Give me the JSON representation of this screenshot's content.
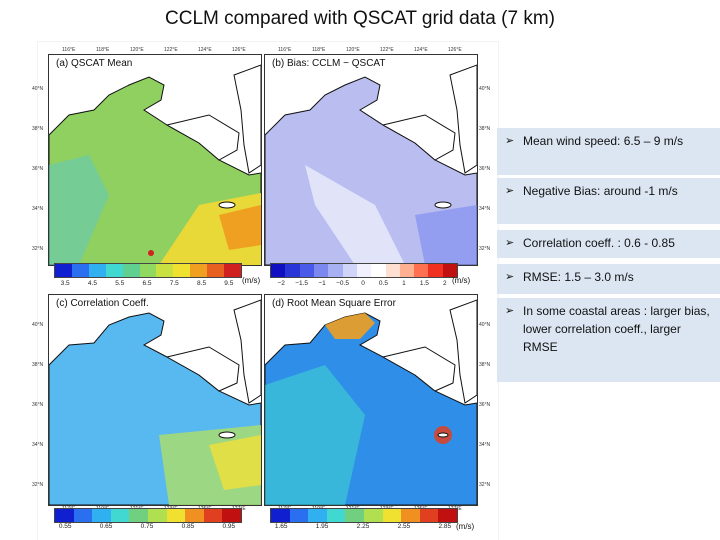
{
  "title": "CCLM compared with QSCAT grid data (7 km)",
  "colors": {
    "land": "#ffffff",
    "coast": "#111111",
    "mean_sea": "#8fd060",
    "bias_sea": "#b9bdf0",
    "corr_sea": "#58b8f0",
    "rmse_sea": "#2f8fe8",
    "box_bg": "#dce6f2"
  },
  "panels": [
    {
      "label": "(a) QSCAT Mean",
      "lon_ticks": [
        "116°E",
        "118°E",
        "120°E",
        "122°E",
        "124°E",
        "126°E"
      ],
      "lat_ticks": [
        "40°N",
        "38°N",
        "36°N",
        "34°N",
        "32°N"
      ]
    },
    {
      "label": "(b) Bias: CCLM − QSCAT",
      "lon_ticks": [
        "116°E",
        "118°E",
        "120°E",
        "122°E",
        "124°E",
        "126°E"
      ],
      "lat_ticks": [
        "40°N",
        "38°N",
        "36°N",
        "34°N",
        "32°N"
      ]
    },
    {
      "label": "(c) Correlation Coeff.",
      "lon_ticks": [
        "117°E",
        "119°E",
        "121°E",
        "123°E",
        "125°E",
        "127°E"
      ],
      "lat_ticks": [
        "40°N",
        "38°N",
        "36°N",
        "34°N",
        "32°N"
      ]
    },
    {
      "label": "(d) Root Mean Square Error",
      "lon_ticks": [
        "117°E",
        "119°E",
        "121°E",
        "123°E",
        "125°E",
        "127°E"
      ],
      "lat_ticks": [
        "40°N",
        "38°N",
        "36°N",
        "34°N",
        "32°N"
      ]
    }
  ],
  "colorbars": [
    {
      "labels": [
        "3.5",
        "4.5",
        "5.5",
        "6.5",
        "7.5",
        "8.5",
        "9.5"
      ],
      "unit": "(m/s)",
      "colors": [
        "#1020d0",
        "#2a6ff0",
        "#30b0f0",
        "#40d8d0",
        "#60d090",
        "#90d860",
        "#c8e040",
        "#f0e030",
        "#f0a020",
        "#e86020",
        "#d02020"
      ]
    },
    {
      "labels": [
        "−2",
        "−1.5",
        "−1",
        "−0.5",
        "0",
        "0.5",
        "1",
        "1.5",
        "2"
      ],
      "unit": "(m/s)",
      "colors": [
        "#1010c0",
        "#2a35d8",
        "#4a5ae8",
        "#7a88f0",
        "#a8b0f4",
        "#d0d4f8",
        "#f0f0ff",
        "#ffffff",
        "#ffe0d0",
        "#ffb090",
        "#ff7050",
        "#f03020",
        "#c01010"
      ]
    },
    {
      "labels": [
        "0.55",
        "0.65",
        "0.75",
        "0.85",
        "0.95"
      ],
      "colors": [
        "#1020d0",
        "#2a6ff0",
        "#30b0f0",
        "#40d8d0",
        "#70d080",
        "#b0e050",
        "#f0e030",
        "#f09020",
        "#e04020",
        "#c01010"
      ]
    },
    {
      "labels": [
        "1.65",
        "1.95",
        "2.25",
        "2.55",
        "2.85"
      ],
      "unit": "(m/s)",
      "colors": [
        "#1020d0",
        "#2a6ff0",
        "#30b0f0",
        "#40d8d0",
        "#70d080",
        "#b0e050",
        "#f0e030",
        "#f09020",
        "#e04020",
        "#c01010"
      ]
    }
  ],
  "bullets": [
    {
      "text": "Mean wind speed: 6.5 – 9 m/s"
    },
    {
      "text": "Negative Bias: around -1 m/s"
    },
    {
      "text": "Correlation coeff. : 0.6 - 0.85"
    },
    {
      "text": "RMSE:  1.5 – 3.0 m/s"
    },
    {
      "text": "In some coastal areas : larger bias, lower correlation coeff., larger RMSE"
    }
  ],
  "arrow_glyph": "➢"
}
